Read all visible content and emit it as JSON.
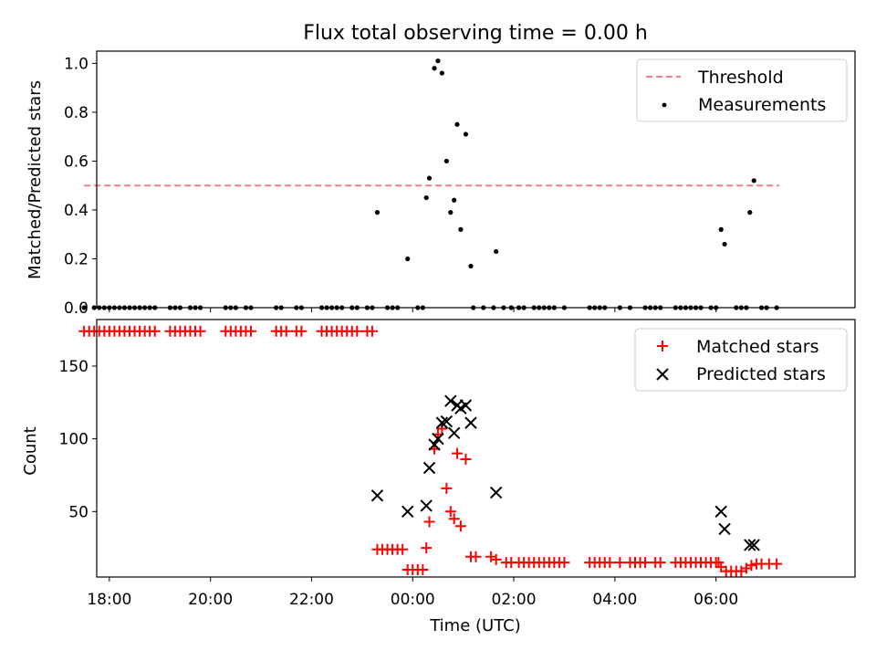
{
  "title": "Flux total observing time = 0.00 h",
  "colors": {
    "threshold": "#f08080",
    "measurement": "#000000",
    "matched": "#ff0000",
    "predicted": "#000000"
  },
  "chart_data": [
    {
      "type": "scatter",
      "ylabel": "Matched/Predicted stars",
      "ylim": [
        0,
        1.05
      ],
      "yticks": [
        "0.0",
        "0.2",
        "0.4",
        "0.6",
        "0.8",
        "1.0"
      ],
      "xlim": [
        -6.25,
        8.75
      ],
      "xticks": [
        -6,
        -4,
        -2,
        0,
        2,
        4,
        6
      ],
      "legend": {
        "position": "top-right",
        "entries": [
          "Threshold",
          "Measurements"
        ]
      },
      "threshold": {
        "name": "Threshold",
        "value": 0.5,
        "x_range": [
          -6.5,
          7.25
        ]
      },
      "series": [
        {
          "name": "Measurements",
          "points": [
            [
              -0.7,
              0.39
            ],
            [
              -0.1,
              0.2
            ],
            [
              0.27,
              0.45
            ],
            [
              0.33,
              0.53
            ],
            [
              0.43,
              0.98
            ],
            [
              0.5,
              1.01
            ],
            [
              0.58,
              0.96
            ],
            [
              0.67,
              0.6
            ],
            [
              0.75,
              0.39
            ],
            [
              0.82,
              0.44
            ],
            [
              0.88,
              0.75
            ],
            [
              0.95,
              0.32
            ],
            [
              1.05,
              0.71
            ],
            [
              1.15,
              0.17
            ],
            [
              1.65,
              0.23
            ],
            [
              6.1,
              0.32
            ],
            [
              6.17,
              0.26
            ],
            [
              6.67,
              0.39
            ],
            [
              6.75,
              0.52
            ],
            [
              -6.5,
              0
            ],
            [
              -6.3,
              0
            ],
            [
              -6.2,
              0
            ],
            [
              -6.1,
              0
            ],
            [
              -6.0,
              0
            ],
            [
              -5.9,
              0
            ],
            [
              -5.8,
              0
            ],
            [
              -5.7,
              0
            ],
            [
              -5.6,
              0
            ],
            [
              -5.5,
              0
            ],
            [
              -5.4,
              0
            ],
            [
              -5.3,
              0
            ],
            [
              -5.2,
              0
            ],
            [
              -5.1,
              0
            ],
            [
              -4.8,
              0
            ],
            [
              -4.7,
              0
            ],
            [
              -4.6,
              0
            ],
            [
              -4.4,
              0
            ],
            [
              -4.3,
              0
            ],
            [
              -4.2,
              0
            ],
            [
              -3.7,
              0
            ],
            [
              -3.6,
              0
            ],
            [
              -3.5,
              0
            ],
            [
              -3.3,
              0
            ],
            [
              -3.2,
              0
            ],
            [
              -2.7,
              0
            ],
            [
              -2.6,
              0
            ],
            [
              -2.3,
              0
            ],
            [
              -2.2,
              0
            ],
            [
              -1.8,
              0
            ],
            [
              -1.7,
              0
            ],
            [
              -1.6,
              0
            ],
            [
              -1.5,
              0
            ],
            [
              -1.4,
              0
            ],
            [
              -1.2,
              0
            ],
            [
              -1.1,
              0
            ],
            [
              -0.9,
              0
            ],
            [
              -0.8,
              0
            ],
            [
              -0.5,
              0
            ],
            [
              -0.4,
              0
            ],
            [
              -0.3,
              0
            ],
            [
              0.1,
              0
            ],
            [
              0.2,
              0
            ],
            [
              1.2,
              0
            ],
            [
              1.4,
              0
            ],
            [
              1.6,
              0
            ],
            [
              1.8,
              0
            ],
            [
              1.95,
              0
            ],
            [
              2.1,
              0
            ],
            [
              2.2,
              0
            ],
            [
              2.4,
              0
            ],
            [
              2.5,
              0
            ],
            [
              2.6,
              0
            ],
            [
              2.7,
              0
            ],
            [
              2.8,
              0
            ],
            [
              3.0,
              0
            ],
            [
              3.5,
              0
            ],
            [
              3.6,
              0
            ],
            [
              3.7,
              0
            ],
            [
              3.8,
              0
            ],
            [
              4.1,
              0
            ],
            [
              4.3,
              0
            ],
            [
              4.6,
              0
            ],
            [
              4.7,
              0
            ],
            [
              4.8,
              0
            ],
            [
              4.9,
              0
            ],
            [
              5.2,
              0
            ],
            [
              5.3,
              0
            ],
            [
              5.4,
              0
            ],
            [
              5.5,
              0
            ],
            [
              5.6,
              0
            ],
            [
              5.7,
              0
            ],
            [
              5.9,
              0
            ],
            [
              6.0,
              0
            ],
            [
              6.4,
              0
            ],
            [
              6.5,
              0
            ],
            [
              6.6,
              0
            ],
            [
              6.9,
              0
            ],
            [
              7.0,
              0
            ],
            [
              7.2,
              0
            ]
          ]
        }
      ]
    },
    {
      "type": "scatter",
      "xlabel": "Time (UTC)",
      "ylabel": "Count",
      "ylim": [
        5,
        182
      ],
      "yticks": [
        "50",
        "100",
        "150"
      ],
      "xlim": [
        -6.25,
        8.75
      ],
      "xticks": [
        "18:00",
        "20:00",
        "22:00",
        "00:00",
        "02:00",
        "04:00",
        "06:00"
      ],
      "legend": {
        "position": "top-right",
        "entries": [
          "Matched stars",
          "Predicted stars"
        ]
      },
      "series": [
        {
          "name": "Matched stars",
          "points": [
            [
              -6.5,
              174
            ],
            [
              -6.4,
              174
            ],
            [
              -6.3,
              174
            ],
            [
              -6.2,
              174
            ],
            [
              -6.1,
              174
            ],
            [
              -6.0,
              174
            ],
            [
              -5.9,
              174
            ],
            [
              -5.8,
              174
            ],
            [
              -5.7,
              174
            ],
            [
              -5.6,
              174
            ],
            [
              -5.5,
              174
            ],
            [
              -5.4,
              174
            ],
            [
              -5.3,
              174
            ],
            [
              -5.2,
              174
            ],
            [
              -5.1,
              174
            ],
            [
              -4.8,
              174
            ],
            [
              -4.7,
              174
            ],
            [
              -4.6,
              174
            ],
            [
              -4.5,
              174
            ],
            [
              -4.4,
              174
            ],
            [
              -4.3,
              174
            ],
            [
              -4.2,
              174
            ],
            [
              -3.7,
              174
            ],
            [
              -3.6,
              174
            ],
            [
              -3.5,
              174
            ],
            [
              -3.4,
              174
            ],
            [
              -3.3,
              174
            ],
            [
              -3.2,
              174
            ],
            [
              -2.7,
              174
            ],
            [
              -2.6,
              174
            ],
            [
              -2.5,
              174
            ],
            [
              -2.3,
              174
            ],
            [
              -2.2,
              174
            ],
            [
              -1.8,
              174
            ],
            [
              -1.7,
              174
            ],
            [
              -1.6,
              174
            ],
            [
              -1.5,
              174
            ],
            [
              -1.4,
              174
            ],
            [
              -1.3,
              174
            ],
            [
              -1.2,
              174
            ],
            [
              -1.1,
              174
            ],
            [
              -0.9,
              174
            ],
            [
              -0.8,
              174
            ],
            [
              -0.7,
              24
            ],
            [
              -0.6,
              24
            ],
            [
              -0.5,
              24
            ],
            [
              -0.4,
              24
            ],
            [
              -0.3,
              24
            ],
            [
              -0.2,
              24
            ],
            [
              -0.1,
              10
            ],
            [
              0.0,
              10
            ],
            [
              0.1,
              10
            ],
            [
              0.2,
              10
            ],
            [
              0.27,
              25
            ],
            [
              0.33,
              43
            ],
            [
              0.43,
              93
            ],
            [
              0.5,
              103
            ],
            [
              0.58,
              107
            ],
            [
              0.67,
              66
            ],
            [
              0.75,
              50
            ],
            [
              0.82,
              45
            ],
            [
              0.88,
              90
            ],
            [
              0.95,
              40
            ],
            [
              1.05,
              86
            ],
            [
              1.15,
              19
            ],
            [
              1.25,
              19
            ],
            [
              1.55,
              19
            ],
            [
              1.65,
              17
            ],
            [
              1.85,
              15
            ],
            [
              1.95,
              15
            ],
            [
              2.1,
              15
            ],
            [
              2.2,
              15
            ],
            [
              2.3,
              15
            ],
            [
              2.4,
              15
            ],
            [
              2.5,
              15
            ],
            [
              2.6,
              15
            ],
            [
              2.7,
              15
            ],
            [
              2.8,
              15
            ],
            [
              2.9,
              15
            ],
            [
              3.0,
              15
            ],
            [
              3.5,
              15
            ],
            [
              3.6,
              15
            ],
            [
              3.7,
              15
            ],
            [
              3.8,
              15
            ],
            [
              3.9,
              15
            ],
            [
              4.1,
              15
            ],
            [
              4.3,
              15
            ],
            [
              4.4,
              15
            ],
            [
              4.5,
              15
            ],
            [
              4.6,
              15
            ],
            [
              4.8,
              15
            ],
            [
              4.9,
              15
            ],
            [
              5.2,
              15
            ],
            [
              5.3,
              15
            ],
            [
              5.4,
              15
            ],
            [
              5.5,
              15
            ],
            [
              5.6,
              15
            ],
            [
              5.7,
              15
            ],
            [
              5.8,
              15
            ],
            [
              5.9,
              15
            ],
            [
              6.0,
              15
            ],
            [
              6.05,
              15
            ],
            [
              6.1,
              12
            ],
            [
              6.2,
              9
            ],
            [
              6.3,
              9
            ],
            [
              6.4,
              9
            ],
            [
              6.5,
              9
            ],
            [
              6.6,
              11
            ],
            [
              6.7,
              13
            ],
            [
              6.8,
              14
            ],
            [
              6.9,
              14
            ],
            [
              7.05,
              14
            ],
            [
              7.2,
              14
            ]
          ]
        },
        {
          "name": "Predicted stars",
          "points": [
            [
              -0.7,
              61
            ],
            [
              -0.1,
              50
            ],
            [
              0.27,
              54
            ],
            [
              0.33,
              80
            ],
            [
              0.43,
              96
            ],
            [
              0.5,
              100
            ],
            [
              0.58,
              111
            ],
            [
              0.67,
              112
            ],
            [
              0.75,
              126
            ],
            [
              0.82,
              104
            ],
            [
              0.88,
              123
            ],
            [
              0.95,
              121
            ],
            [
              1.05,
              123
            ],
            [
              1.15,
              111
            ],
            [
              1.65,
              63
            ],
            [
              6.1,
              50
            ],
            [
              6.17,
              38
            ],
            [
              6.67,
              27
            ],
            [
              6.75,
              27
            ]
          ]
        }
      ]
    }
  ]
}
